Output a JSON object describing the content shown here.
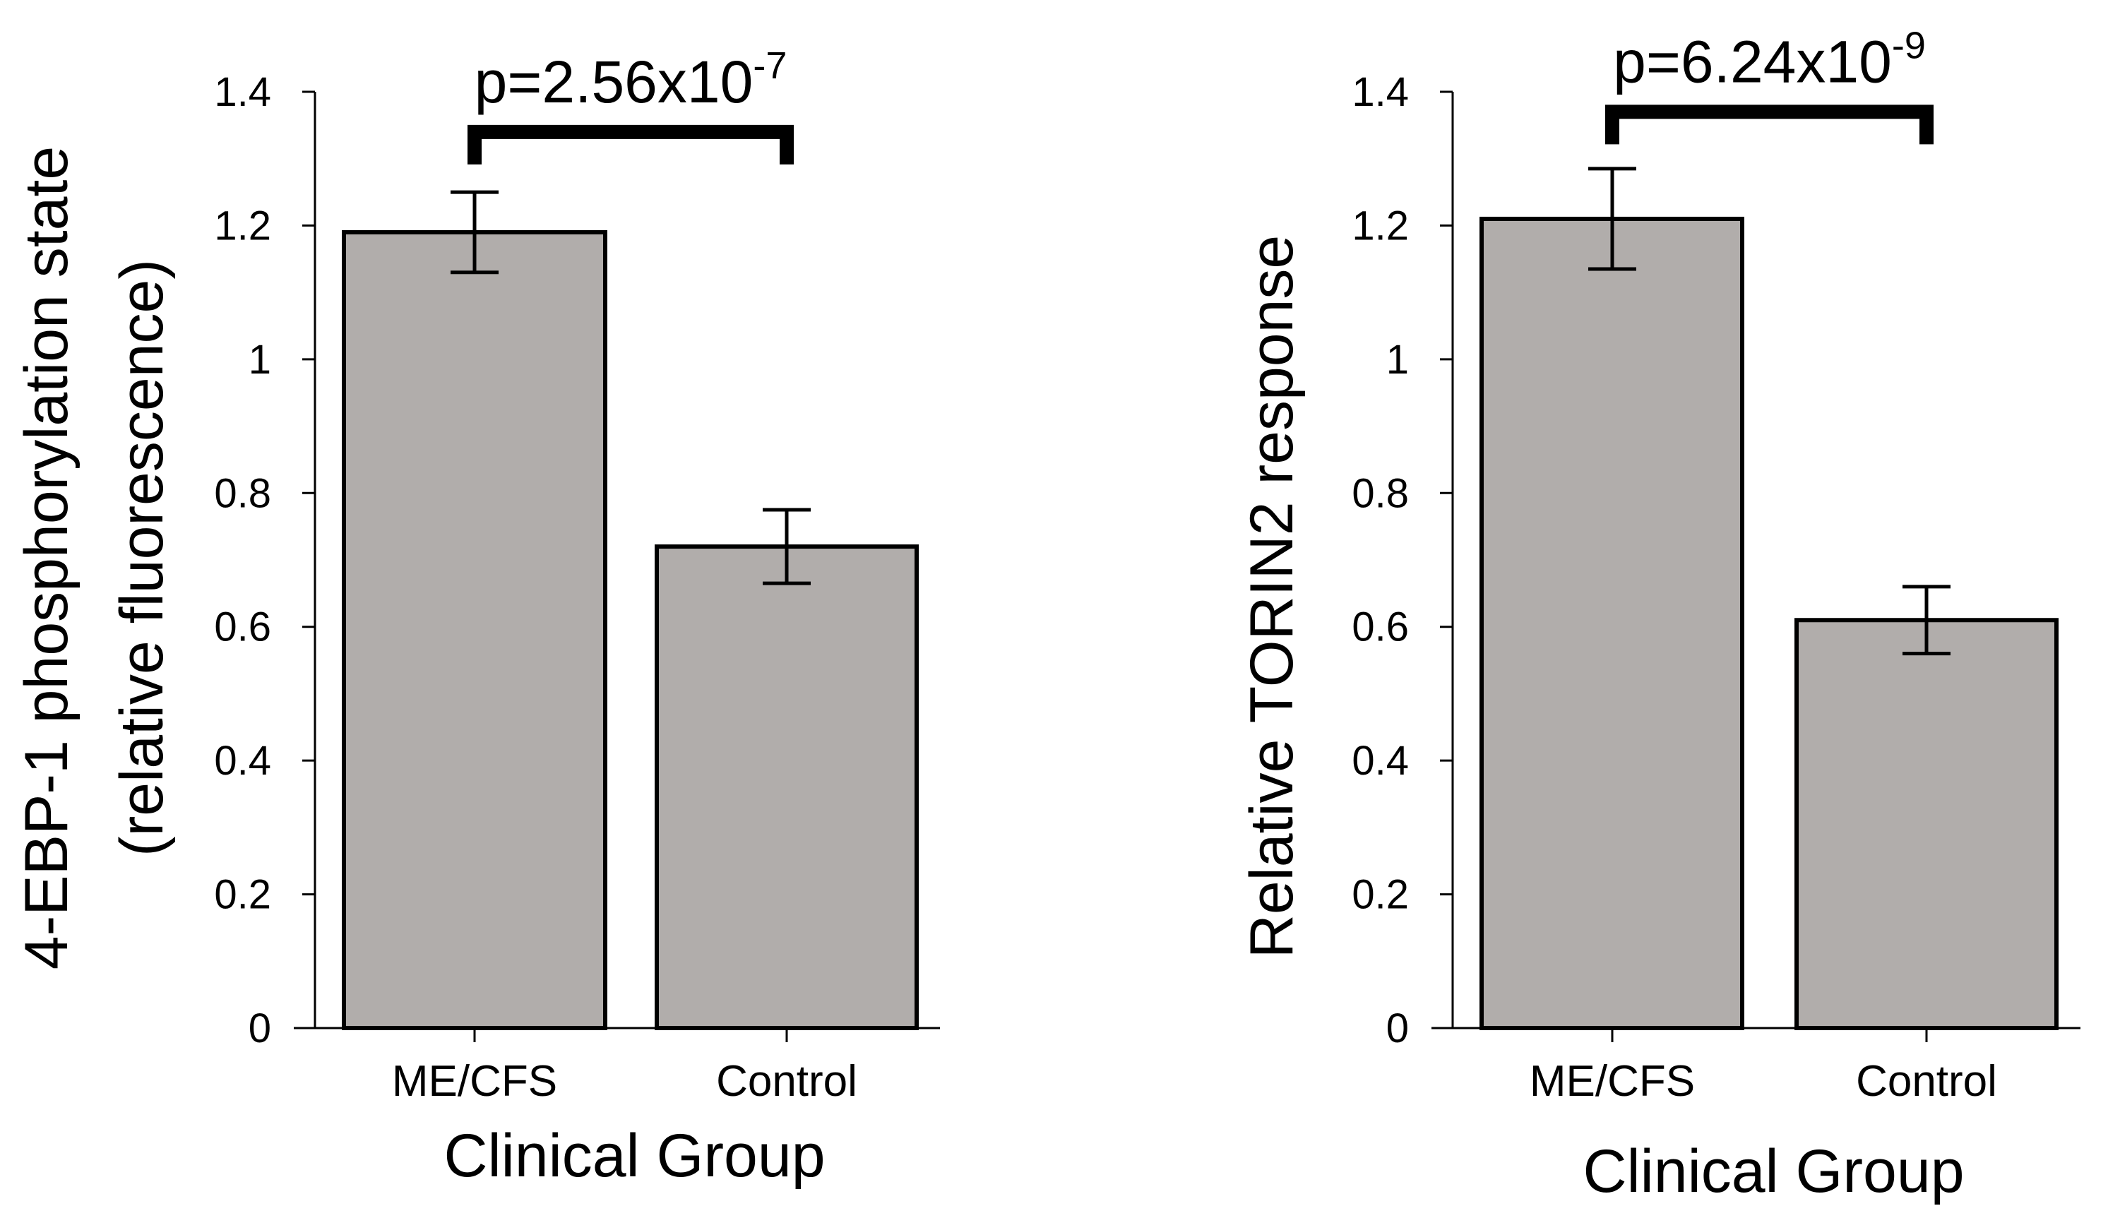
{
  "colors": {
    "bar_fill": "#b1adab",
    "bar_stroke": "#000000",
    "axis": "#000000",
    "background": "#ffffff"
  },
  "chart_data": [
    {
      "type": "bar",
      "id": "left",
      "categories": [
        "ME/CFS",
        "Control"
      ],
      "values": [
        1.19,
        0.72
      ],
      "errors": [
        0.06,
        0.055
      ],
      "ylim": [
        0,
        1.4
      ],
      "yticks": [
        0,
        0.2,
        0.4,
        0.6,
        0.8,
        1,
        1.2,
        1.4
      ],
      "ytick_labels": [
        "0",
        "0.2",
        "0.4",
        "0.6",
        "0.8",
        "1",
        "1.2",
        "1.4"
      ],
      "xlabel": "Clinical Group",
      "ylabel_lines": [
        "4-EBP-1 phosphorylation state",
        "(relative fluorescence)"
      ],
      "annotation": {
        "type": "significance-bracket",
        "between": [
          "ME/CFS",
          "Control"
        ],
        "bracket_y": 1.34,
        "text_base": "p=2.56x10",
        "text_exponent": "-7"
      }
    },
    {
      "type": "bar",
      "id": "right",
      "categories": [
        "ME/CFS",
        "Control"
      ],
      "values": [
        1.21,
        0.61
      ],
      "errors": [
        0.075,
        0.05
      ],
      "ylim": [
        0,
        1.4
      ],
      "yticks": [
        0,
        0.2,
        0.4,
        0.6,
        0.8,
        1,
        1.2,
        1.4
      ],
      "ytick_labels": [
        "0",
        "0.2",
        "0.4",
        "0.6",
        "0.8",
        "1",
        "1.2",
        "1.4"
      ],
      "xlabel": "Clinical Group",
      "ylabel_lines": [
        "Relative TORIN2 response"
      ],
      "annotation": {
        "type": "significance-bracket",
        "between": [
          "ME/CFS",
          "Control"
        ],
        "bracket_y": 1.37,
        "text_base": "p=6.24x10",
        "text_exponent": "-9"
      }
    }
  ]
}
